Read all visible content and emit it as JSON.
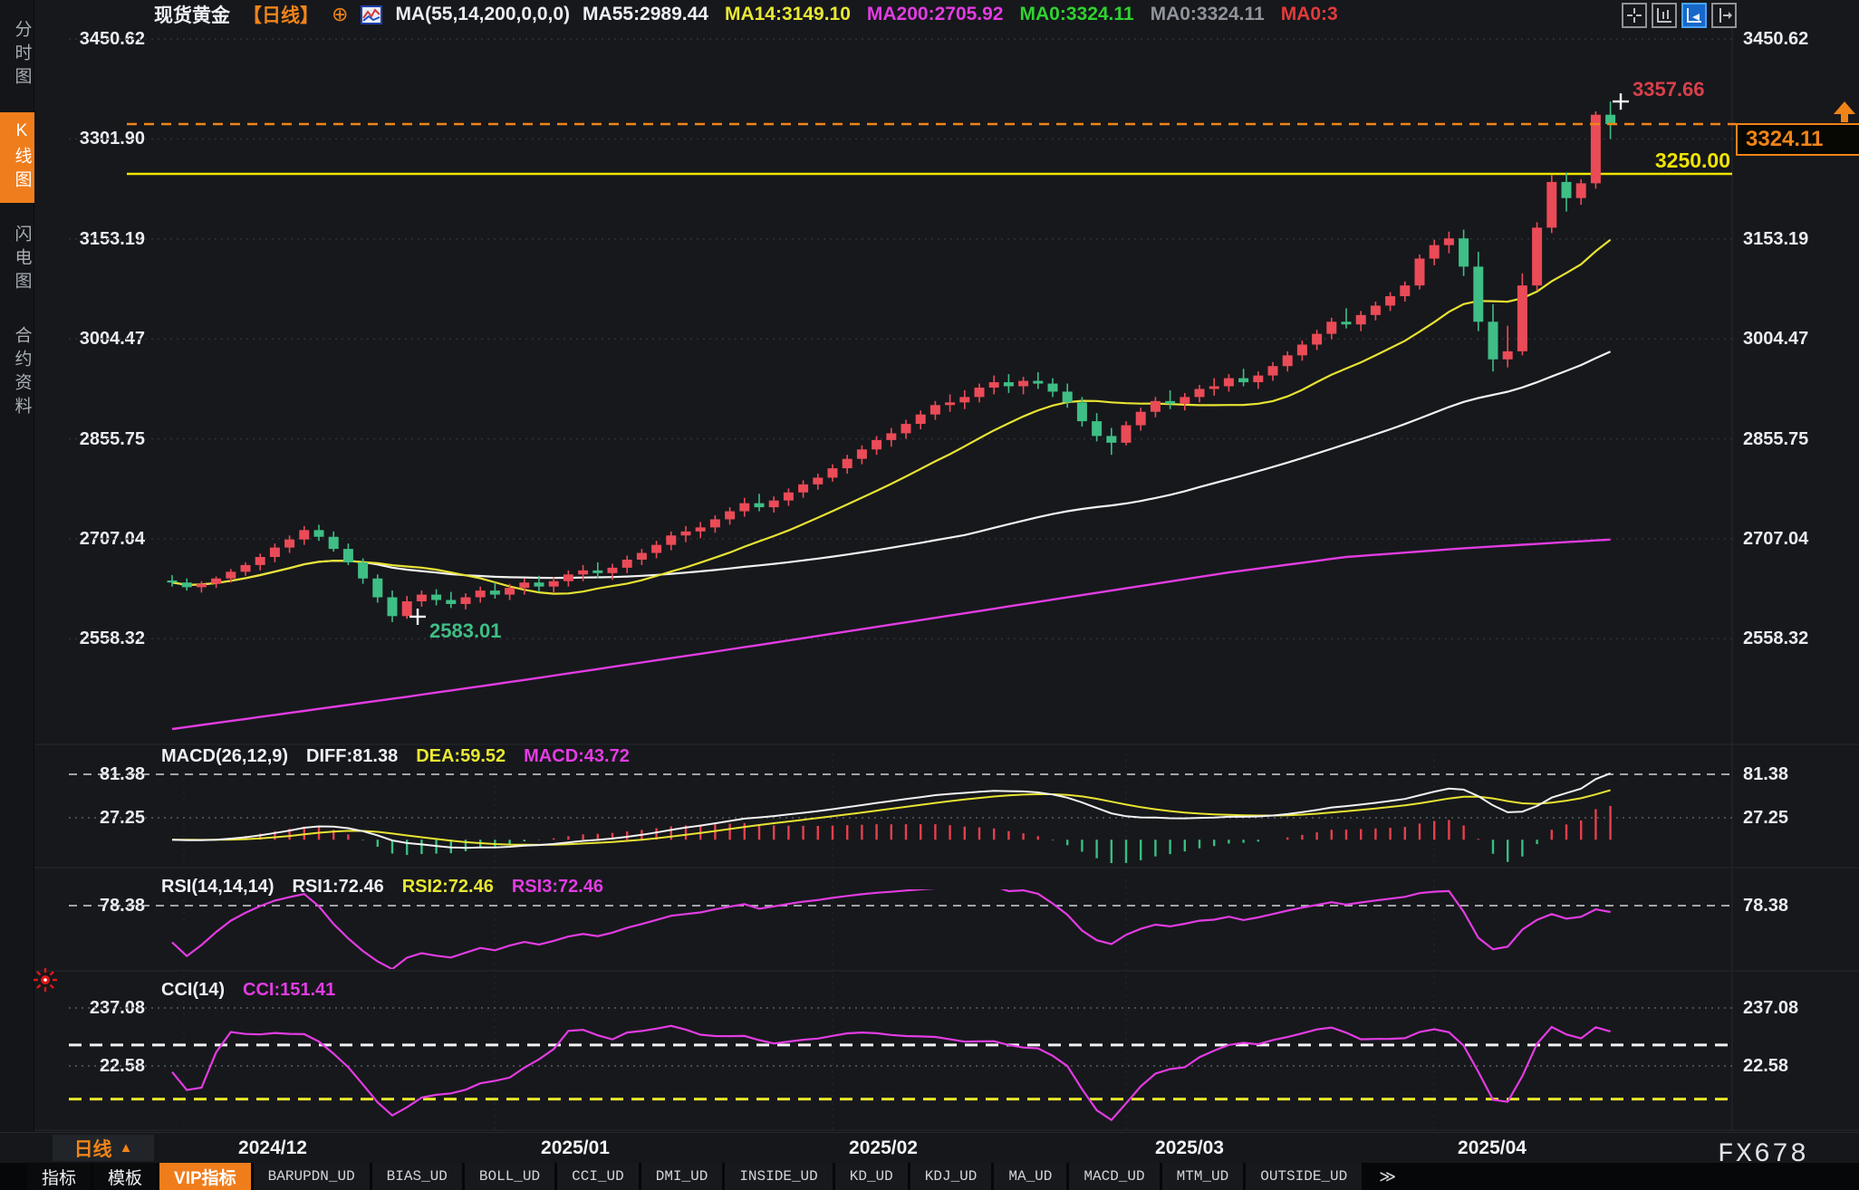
{
  "header": {
    "symbol": "现货黄金",
    "period_tag": "【日线】",
    "ma_settings": "MA(55,14,200,0,0,0)",
    "ma_items": [
      {
        "label": "MA55:2989.44",
        "color": "#eef0f3"
      },
      {
        "label": "MA14:3149.10",
        "color": "#e8e832"
      },
      {
        "label": "MA200:2705.92",
        "color": "#e23ce2"
      },
      {
        "label": "MA0:3324.11",
        "color": "#2fd32f"
      },
      {
        "label": "MA0:3324.11",
        "color": "#8f949b"
      },
      {
        "label": "MA0:3",
        "color": "#e23b3b"
      }
    ],
    "toolbar_icon_names": [
      "layout-grid-icon",
      "axis-range-icon",
      "axis-zoom-icon",
      "axis-shift-icon"
    ]
  },
  "sidebar": {
    "items": [
      {
        "label": "分时图",
        "active": false
      },
      {
        "label": "K线图",
        "active": true
      },
      {
        "label": "闪电图",
        "active": false
      },
      {
        "label": "合约资料",
        "active": false
      }
    ]
  },
  "main_axis": {
    "labels": [
      "3450.62",
      "3301.90",
      "3153.19",
      "3004.47",
      "2855.75",
      "2707.04",
      "2558.32"
    ]
  },
  "annotations": {
    "high_label": "3357.66",
    "low_label": "2583.01",
    "hline_label": "3250.00",
    "last_price_label": "3324.11"
  },
  "macd": {
    "title": "MACD(26,12,9)",
    "diff_label": "DIFF:81.38",
    "dea_label": "DEA:59.52",
    "macd_label": "MACD:43.72",
    "axis_labels": [
      "81.38",
      "27.25"
    ]
  },
  "rsi": {
    "title": "RSI(14,14,14)",
    "rsi1_label": "RSI1:72.46",
    "rsi2_label": "RSI2:72.46",
    "rsi3_label": "RSI3:72.46",
    "axis_labels": [
      "78.38"
    ]
  },
  "cci": {
    "title": "CCI(14)",
    "cci_label": "CCI:151.41",
    "axis_labels": [
      "237.08",
      "22.58"
    ]
  },
  "xaxis": {
    "period": "日线",
    "dates": [
      "2024/12",
      "2025/01",
      "2025/02",
      "2025/03",
      "2025/04"
    ]
  },
  "bottom_tabs": {
    "left": [
      "指标",
      "模板"
    ],
    "vip": "VIP指标",
    "indicators": [
      "BARUPDN_UD",
      "BIAS_UD",
      "BOLL_UD",
      "CCI_UD",
      "DMI_UD",
      "INSIDE_UD",
      "KD_UD",
      "KDJ_UD",
      "MA_UD",
      "MACD_UD",
      "MTM_UD",
      "OUTSIDE_UD"
    ],
    "more": "≫"
  },
  "watermark": "FX678",
  "colors": {
    "accent_orange": "#f07d1c",
    "candle_up": "#ea4b57",
    "candle_down": "#3fbe85",
    "ma14": "#e8e332",
    "ma55": "#f2f2f2",
    "ma200": "#e23ce2",
    "level_yellow": "#f0e400",
    "last_price_orange": "#f08418",
    "indicator_magenta": "#e23ce2",
    "high_red": "#d8404a"
  },
  "chart_data": {
    "type": "candlestick",
    "title": "现货黄金 日线 (Spot Gold Daily)",
    "y_axis_ticks": [
      3450.62,
      3301.9,
      3153.19,
      3004.47,
      2855.75,
      2707.04,
      2558.32
    ],
    "x_axis_month_labels": [
      "2024/12",
      "2025/01",
      "2025/02",
      "2025/03",
      "2025/04"
    ],
    "grid": true,
    "legend_position": "top",
    "levels": {
      "horizontal_yellow_line": 3250.0,
      "last_price": 3324.11,
      "marked_high": 3357.66,
      "marked_low": 2583.01
    },
    "moving_average_last_values": {
      "ma55": 2989.44,
      "ma14": 3149.1,
      "ma200": 2705.92
    },
    "indicators": {
      "macd": {
        "params": [
          26,
          12,
          9
        ],
        "diff": 81.38,
        "dea": 59.52,
        "macd": 43.72,
        "axis_ticks": [
          81.38,
          27.25
        ]
      },
      "rsi": {
        "params": [
          14,
          14,
          14
        ],
        "rsi1": 72.46,
        "rsi2": 72.46,
        "rsi3": 72.46,
        "axis_ticks": [
          78.38
        ]
      },
      "cci": {
        "params": [
          14
        ],
        "cci": 151.41,
        "axis_ticks": [
          237.08,
          22.58
        ],
        "bands": [
          100,
          -100
        ]
      }
    },
    "ma200_control_points": [
      [
        0,
        2424
      ],
      [
        8,
        2448
      ],
      [
        16,
        2472
      ],
      [
        24,
        2497
      ],
      [
        32,
        2523
      ],
      [
        40,
        2549
      ],
      [
        48,
        2576
      ],
      [
        56,
        2603
      ],
      [
        64,
        2630
      ],
      [
        72,
        2657
      ],
      [
        80,
        2680
      ],
      [
        88,
        2693
      ],
      [
        98,
        2705.92
      ]
    ],
    "candles_ohlc": [
      [
        2645,
        2653,
        2636,
        2642
      ],
      [
        2642,
        2648,
        2630,
        2635
      ],
      [
        2635,
        2644,
        2627,
        2640
      ],
      [
        2640,
        2651,
        2634,
        2648
      ],
      [
        2648,
        2662,
        2642,
        2658
      ],
      [
        2658,
        2672,
        2652,
        2668
      ],
      [
        2668,
        2685,
        2660,
        2680
      ],
      [
        2680,
        2700,
        2672,
        2694
      ],
      [
        2694,
        2712,
        2686,
        2706
      ],
      [
        2706,
        2726,
        2698,
        2720
      ],
      [
        2720,
        2728,
        2704,
        2710
      ],
      [
        2710,
        2718,
        2688,
        2692
      ],
      [
        2692,
        2700,
        2668,
        2672
      ],
      [
        2672,
        2678,
        2640,
        2648
      ],
      [
        2648,
        2654,
        2612,
        2620
      ],
      [
        2620,
        2630,
        2583.01,
        2592
      ],
      [
        2592,
        2622,
        2588,
        2614
      ],
      [
        2614,
        2630,
        2606,
        2624
      ],
      [
        2624,
        2632,
        2608,
        2616
      ],
      [
        2616,
        2628,
        2604,
        2610
      ],
      [
        2610,
        2626,
        2602,
        2620
      ],
      [
        2620,
        2636,
        2612,
        2630
      ],
      [
        2630,
        2642,
        2618,
        2624
      ],
      [
        2624,
        2640,
        2616,
        2634
      ],
      [
        2634,
        2648,
        2624,
        2642
      ],
      [
        2642,
        2652,
        2628,
        2636
      ],
      [
        2636,
        2650,
        2626,
        2644
      ],
      [
        2644,
        2660,
        2636,
        2654
      ],
      [
        2654,
        2668,
        2644,
        2660
      ],
      [
        2660,
        2672,
        2648,
        2656
      ],
      [
        2656,
        2670,
        2646,
        2664
      ],
      [
        2664,
        2682,
        2656,
        2676
      ],
      [
        2676,
        2692,
        2668,
        2686
      ],
      [
        2686,
        2704,
        2678,
        2698
      ],
      [
        2698,
        2718,
        2690,
        2712
      ],
      [
        2712,
        2726,
        2702,
        2718
      ],
      [
        2718,
        2732,
        2708,
        2724
      ],
      [
        2724,
        2742,
        2716,
        2736
      ],
      [
        2736,
        2754,
        2728,
        2748
      ],
      [
        2748,
        2768,
        2740,
        2760
      ],
      [
        2760,
        2774,
        2748,
        2754
      ],
      [
        2754,
        2770,
        2746,
        2764
      ],
      [
        2764,
        2782,
        2756,
        2776
      ],
      [
        2776,
        2794,
        2768,
        2788
      ],
      [
        2788,
        2804,
        2780,
        2798
      ],
      [
        2798,
        2818,
        2792,
        2812
      ],
      [
        2812,
        2832,
        2804,
        2826
      ],
      [
        2826,
        2846,
        2818,
        2840
      ],
      [
        2840,
        2860,
        2832,
        2854
      ],
      [
        2854,
        2872,
        2844,
        2864
      ],
      [
        2864,
        2884,
        2856,
        2878
      ],
      [
        2878,
        2898,
        2870,
        2892
      ],
      [
        2892,
        2912,
        2884,
        2906
      ],
      [
        2906,
        2922,
        2896,
        2910
      ],
      [
        2910,
        2928,
        2900,
        2918
      ],
      [
        2918,
        2938,
        2910,
        2932
      ],
      [
        2932,
        2950,
        2922,
        2940
      ],
      [
        2940,
        2952,
        2924,
        2934
      ],
      [
        2934,
        2948,
        2922,
        2942
      ],
      [
        2942,
        2955,
        2930,
        2938
      ],
      [
        2938,
        2946,
        2918,
        2926
      ],
      [
        2926,
        2938,
        2902,
        2910
      ],
      [
        2910,
        2918,
        2874,
        2882
      ],
      [
        2882,
        2894,
        2852,
        2860
      ],
      [
        2860,
        2872,
        2832,
        2850
      ],
      [
        2850,
        2882,
        2846,
        2876
      ],
      [
        2876,
        2902,
        2868,
        2896
      ],
      [
        2896,
        2918,
        2888,
        2912
      ],
      [
        2912,
        2928,
        2900,
        2908
      ],
      [
        2908,
        2924,
        2898,
        2918
      ],
      [
        2918,
        2936,
        2910,
        2930
      ],
      [
        2930,
        2946,
        2920,
        2934
      ],
      [
        2934,
        2952,
        2926,
        2946
      ],
      [
        2946,
        2960,
        2934,
        2940
      ],
      [
        2940,
        2956,
        2930,
        2950
      ],
      [
        2950,
        2970,
        2942,
        2964
      ],
      [
        2964,
        2986,
        2956,
        2980
      ],
      [
        2980,
        3002,
        2972,
        2996
      ],
      [
        2996,
        3018,
        2988,
        3012
      ],
      [
        3012,
        3036,
        3004,
        3030
      ],
      [
        3030,
        3050,
        3020,
        3026
      ],
      [
        3026,
        3046,
        3016,
        3040
      ],
      [
        3040,
        3060,
        3032,
        3054
      ],
      [
        3054,
        3074,
        3046,
        3068
      ],
      [
        3068,
        3090,
        3060,
        3084
      ],
      [
        3084,
        3130,
        3078,
        3124
      ],
      [
        3124,
        3152,
        3114,
        3144
      ],
      [
        3144,
        3164,
        3132,
        3154
      ],
      [
        3154,
        3167,
        3098,
        3112
      ],
      [
        3112,
        3134,
        3016,
        3030
      ],
      [
        3030,
        3056,
        2956,
        2974
      ],
      [
        2974,
        3024,
        2962,
        2986
      ],
      [
        2986,
        3102,
        2980,
        3084
      ],
      [
        3084,
        3178,
        3076,
        3170
      ],
      [
        3170,
        3248,
        3162,
        3238
      ],
      [
        3238,
        3252,
        3194,
        3214
      ],
      [
        3214,
        3242,
        3204,
        3236
      ],
      [
        3236,
        3343,
        3228,
        3338
      ],
      [
        3338,
        3357.66,
        3302,
        3324.11
      ]
    ]
  }
}
